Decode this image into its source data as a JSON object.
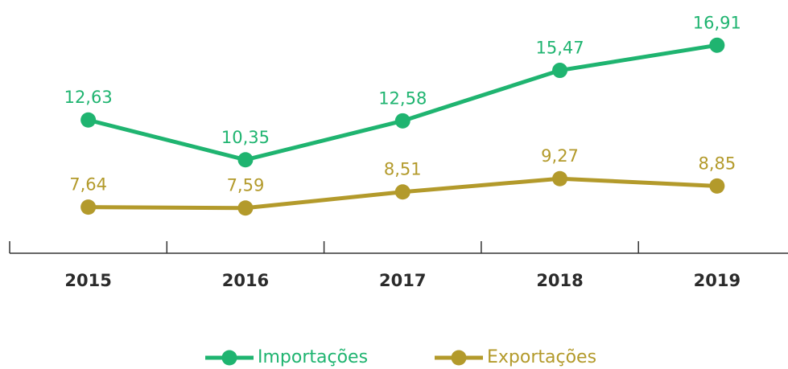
{
  "chart_data": {
    "type": "line",
    "categories": [
      "2015",
      "2016",
      "2017",
      "2018",
      "2019"
    ],
    "series": [
      {
        "name": "Importações",
        "color": "#1fb470",
        "values": [
          12.63,
          10.35,
          12.58,
          15.47,
          16.91
        ],
        "value_labels": [
          "12,63",
          "10,35",
          "12,58",
          "15,47",
          "16,91"
        ]
      },
      {
        "name": "Exportações",
        "color": "#b39a2b",
        "values": [
          7.64,
          7.59,
          8.51,
          9.27,
          8.85
        ],
        "value_labels": [
          "7,64",
          "7,59",
          "8,51",
          "9,27",
          "8,85"
        ]
      }
    ],
    "ylim": [
      5,
      19.5
    ]
  }
}
